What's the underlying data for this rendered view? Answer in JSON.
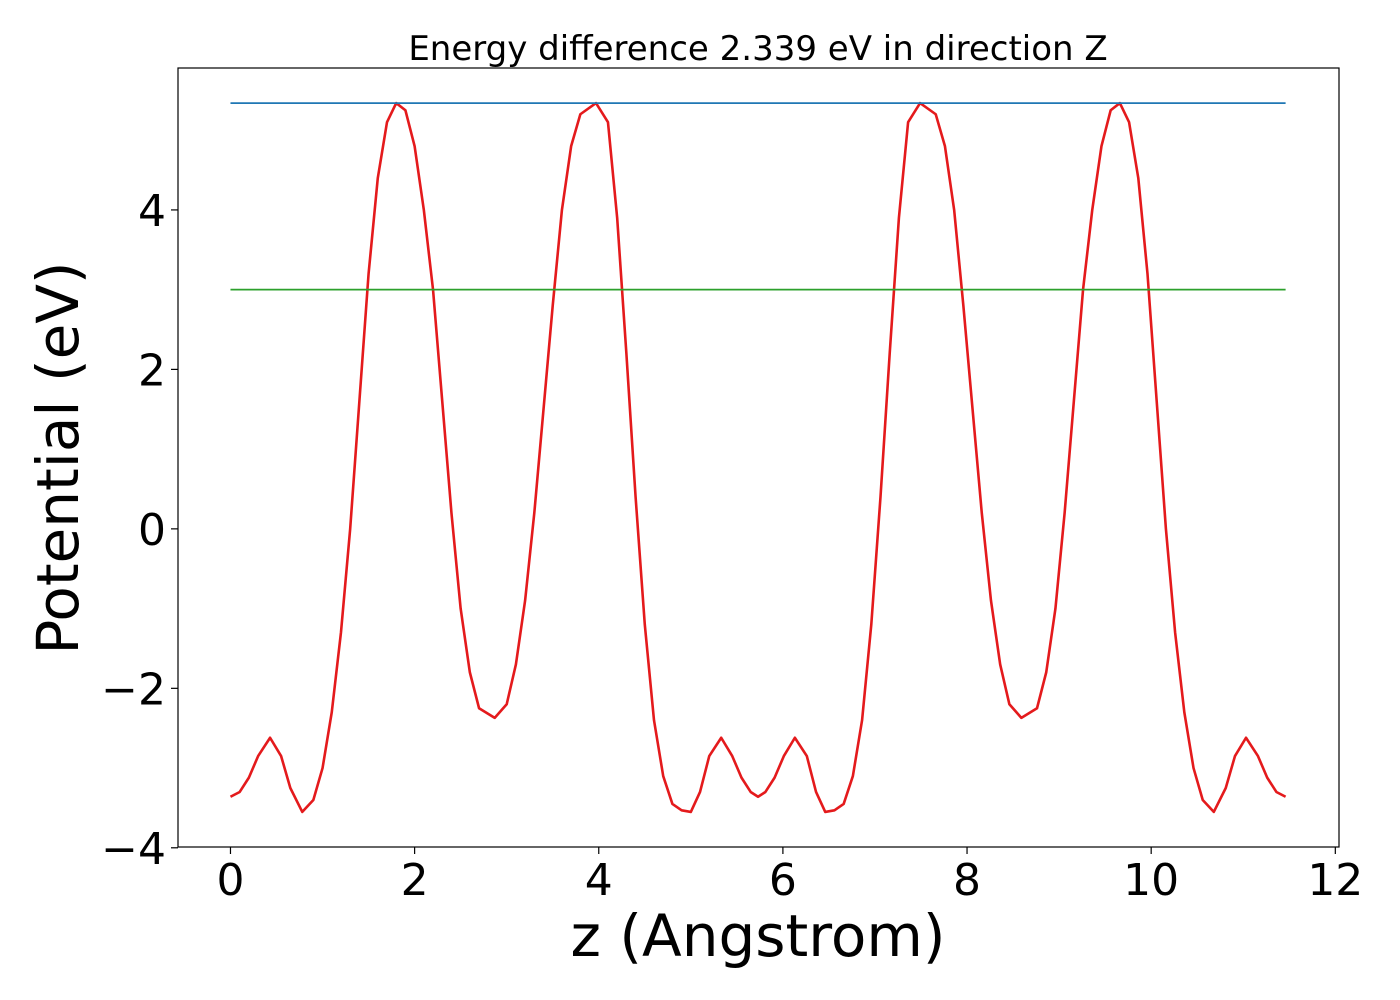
{
  "chart_data": {
    "type": "line",
    "title": "Energy difference 2.339 eV in direction Z",
    "x_label": "z (Angstrom)",
    "y_label": "Potential (eV)",
    "xlim": [
      -0.57,
      12.04
    ],
    "ylim": [
      -3.99,
      5.78
    ],
    "xticks": [
      0,
      2,
      4,
      6,
      8,
      10,
      12
    ],
    "yticks": [
      {
        "value": -4,
        "label": "−4"
      },
      {
        "value": -2,
        "label": "−2"
      },
      0,
      2,
      4
    ],
    "grid": false,
    "series": [
      {
        "color": "#e41a1c",
        "x": [
          0,
          0.1,
          0.2,
          0.3,
          0.43,
          0.55,
          0.65,
          0.78,
          0.9,
          1.0,
          1.1,
          1.2,
          1.3,
          1.4,
          1.5,
          1.6,
          1.7,
          1.8,
          1.9,
          2.0,
          2.1,
          2.2,
          2.3,
          2.4,
          2.5,
          2.6,
          2.7,
          2.87,
          3.0,
          3.1,
          3.2,
          3.3,
          3.4,
          3.5,
          3.6,
          3.7,
          3.8,
          3.97,
          4.1,
          4.2,
          4.3,
          4.4,
          4.5,
          4.6,
          4.7,
          4.8,
          4.9,
          5.0,
          5.1,
          5.2,
          5.33,
          5.45,
          5.55,
          5.65,
          5.73,
          5.81,
          5.91,
          6.01,
          6.13,
          6.26,
          6.36,
          6.46,
          6.56,
          6.66,
          6.76,
          6.86,
          6.96,
          7.06,
          7.16,
          7.26,
          7.36,
          7.49,
          7.66,
          7.76,
          7.86,
          7.96,
          8.06,
          8.16,
          8.26,
          8.36,
          8.46,
          8.59,
          8.76,
          8.86,
          8.96,
          9.06,
          9.16,
          9.26,
          9.36,
          9.46,
          9.56,
          9.66,
          9.76,
          9.86,
          9.96,
          10.06,
          10.16,
          10.26,
          10.36,
          10.46,
          10.56,
          10.68,
          10.81,
          10.91,
          11.03,
          11.16,
          11.26,
          11.36,
          11.46
        ],
        "values": [
          -3.36,
          -3.3,
          -3.12,
          -2.85,
          -2.62,
          -2.85,
          -3.25,
          -3.55,
          -3.4,
          -3.0,
          -2.3,
          -1.3,
          0,
          1.6,
          3.2,
          4.4,
          5.1,
          5.34,
          5.25,
          4.8,
          4.0,
          3.0,
          1.6,
          0.2,
          -1.0,
          -1.8,
          -2.25,
          -2.37,
          -2.2,
          -1.7,
          -0.9,
          0.2,
          1.5,
          2.8,
          4.0,
          4.8,
          5.2,
          5.34,
          5.1,
          3.9,
          2.2,
          0.4,
          -1.2,
          -2.4,
          -3.1,
          -3.45,
          -3.53,
          -3.55,
          -3.3,
          -2.85,
          -2.62,
          -2.85,
          -3.12,
          -3.3,
          -3.36,
          -3.3,
          -3.12,
          -2.85,
          -2.62,
          -2.85,
          -3.3,
          -3.55,
          -3.53,
          -3.45,
          -3.1,
          -2.4,
          -1.2,
          0.4,
          2.2,
          3.9,
          5.1,
          5.34,
          5.2,
          4.8,
          4.0,
          2.8,
          1.5,
          0.2,
          -0.9,
          -1.7,
          -2.2,
          -2.37,
          -2.25,
          -1.8,
          -1.0,
          0.2,
          1.6,
          3.0,
          4.0,
          4.8,
          5.25,
          5.34,
          5.1,
          4.4,
          3.2,
          1.6,
          0,
          -1.3,
          -2.3,
          -3.0,
          -3.4,
          -3.55,
          -3.25,
          -2.85,
          -2.62,
          -2.85,
          -3.12,
          -3.3,
          -3.36
        ]
      },
      {
        "color": "#1f77b4",
        "x": [
          0,
          11.46
        ],
        "values": [
          5.339,
          5.339
        ]
      },
      {
        "color": "#2ca02c",
        "x": [
          0,
          11.46
        ],
        "values": [
          3.0,
          3.0
        ]
      }
    ]
  }
}
